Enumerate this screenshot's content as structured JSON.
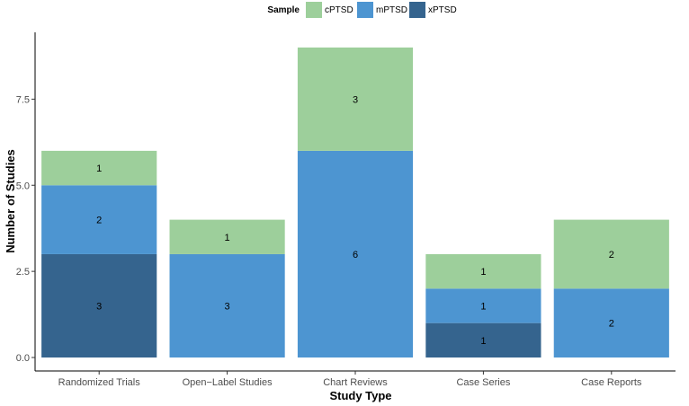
{
  "chart_data": {
    "type": "bar",
    "stacked": true,
    "categories": [
      "Randomized Trials",
      "Open−Label Studies",
      "Chart Reviews",
      "Case Series",
      "Case Reports"
    ],
    "series": [
      {
        "name": "xPTSD",
        "color": "#35648e",
        "values": [
          3,
          0,
          0,
          1,
          0
        ]
      },
      {
        "name": "mPTSD",
        "color": "#4d95d1",
        "values": [
          2,
          3,
          6,
          1,
          2
        ]
      },
      {
        "name": "cPTSD",
        "color": "#9dcf9b",
        "values": [
          1,
          1,
          3,
          1,
          2
        ]
      }
    ],
    "stack_order_bottom_to_top": [
      "xPTSD",
      "mPTSD",
      "cPTSD"
    ],
    "legend_order": [
      "cPTSD",
      "mPTSD",
      "xPTSD"
    ],
    "legend_title": "Sample",
    "legend_position": "top",
    "xlabel": "Study Type",
    "ylabel": "Number of Studies",
    "ylim": [
      0,
      9.5
    ],
    "yticks": [
      0,
      2.5,
      5,
      7.5
    ],
    "ytick_labels": [
      "0.0",
      "2.5",
      "5.0",
      "7.5"
    ],
    "grid": false
  }
}
